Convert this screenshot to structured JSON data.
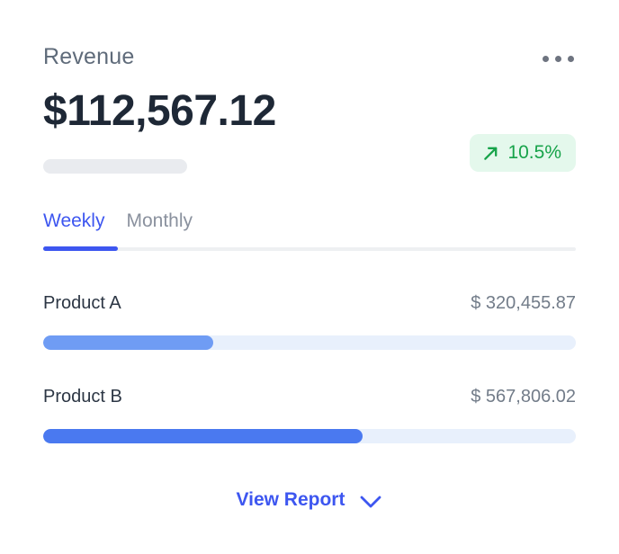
{
  "card": {
    "title": "Revenue",
    "amount": "$112,567.12",
    "change": {
      "value": "10.5%",
      "direction": "up"
    },
    "menu_icon": "ellipsis-horizontal",
    "tabs": [
      {
        "label": "Weekly",
        "active": true
      },
      {
        "label": "Monthly",
        "active": false
      }
    ],
    "products": [
      {
        "name": "Product A",
        "value": "$ 320,455.87",
        "progress_pct": 32
      },
      {
        "name": "Product B",
        "value": "$ 567,806.02",
        "progress_pct": 60
      }
    ],
    "footer": {
      "label": "View Report",
      "icon": "chevron-down"
    }
  },
  "colors": {
    "accent": "#3d56f0",
    "amount": "#1e2836",
    "title": "#5f6b7a",
    "inactive-tab": "#8a919e",
    "label": "#2c3644",
    "value": "#727c89",
    "pill": "#e9ebef",
    "divider": "#eef0f2",
    "track": "#e8f0fc",
    "fill-a": "#6f9cf4",
    "fill-b": "#4a79f0",
    "badge-bg": "#e4f8ec",
    "green": "#17a34a",
    "dots": "#6e7480"
  }
}
